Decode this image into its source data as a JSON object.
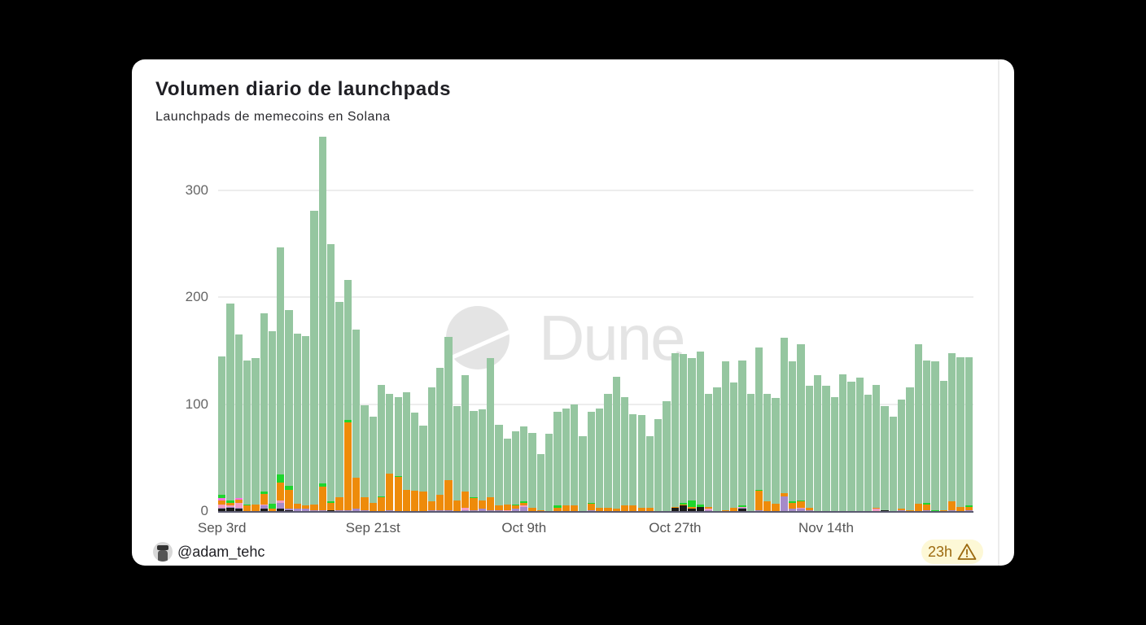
{
  "card": {
    "title": "Volumen diario de launchpads",
    "subtitle": "Launchpads de memecoins en Solana"
  },
  "footer": {
    "username": "@adam_tehc",
    "avatar_icon": "user-avatar",
    "freshness_badge": "23h",
    "warning_icon": "warning-triangle-icon"
  },
  "watermark": {
    "text": "Dune"
  },
  "colors": {
    "main_series": "#95c6a0",
    "orange": "#ee8b0a",
    "green": "#1fd62e",
    "purple": "#a58ac8",
    "pink": "#f39bc2",
    "magenta": "#f76fe0",
    "black": "#1a1a1a",
    "grid": "#ededed",
    "badge_bg": "#fdf8d6",
    "badge_text": "#9c6a10"
  },
  "chart_data": {
    "type": "bar",
    "stacked": true,
    "title": "Volumen diario de launchpads",
    "subtitle": "Launchpads de memecoins en Solana",
    "xlabel": "",
    "ylabel": "",
    "ylim": [
      0,
      350
    ],
    "yticks": [
      0,
      100,
      200,
      300
    ],
    "xtick_labels": [
      "Sep 3rd",
      "Sep 21st",
      "Oct 9th",
      "Oct 27th",
      "Nov 14th"
    ],
    "xtick_indices": [
      0,
      18,
      36,
      54,
      72
    ],
    "grid": true,
    "legend": "none",
    "start_date": "Sep 3rd",
    "totals": [
      145,
      194,
      165,
      141,
      143,
      185,
      168,
      247,
      188,
      166,
      164,
      281,
      350,
      250,
      196,
      216,
      170,
      99,
      88,
      118,
      110,
      107,
      111,
      92,
      80,
      116,
      134,
      163,
      98,
      127,
      94,
      95,
      143,
      81,
      68,
      75,
      79,
      73,
      53,
      72,
      93,
      96,
      100,
      70,
      93,
      96,
      110,
      126,
      107,
      91,
      90,
      70,
      86,
      103,
      148,
      147,
      143,
      149,
      110,
      116,
      140,
      120,
      141,
      110,
      153,
      110,
      106,
      162,
      140,
      156,
      117,
      127,
      117,
      107,
      128,
      121,
      125,
      109,
      118,
      98,
      88,
      104,
      116,
      156,
      141,
      140,
      122,
      148,
      144,
      144
    ],
    "series": [
      {
        "name": "black",
        "color": "#1a1a1a",
        "values": [
          2,
          3,
          2,
          0,
          0,
          2,
          0,
          2,
          1,
          0,
          0,
          0,
          0,
          1,
          0,
          0,
          0,
          0,
          0,
          0,
          0,
          0,
          0,
          0,
          0,
          0,
          0,
          0,
          0,
          0,
          0,
          0,
          0,
          0,
          0,
          0,
          0,
          0,
          0,
          0,
          0,
          0,
          0,
          0,
          0,
          0,
          0,
          0,
          0,
          0,
          0,
          0,
          0,
          0,
          3,
          5,
          2,
          4,
          0,
          0,
          0,
          0,
          2,
          0,
          0,
          0,
          0,
          0,
          0,
          0,
          0,
          0,
          0,
          0,
          0,
          0,
          0,
          0,
          0,
          1,
          0,
          0,
          0,
          0,
          0,
          0,
          0,
          0,
          0,
          0
        ]
      },
      {
        "name": "purple",
        "color": "#a58ac8",
        "values": [
          1,
          1,
          1,
          0,
          0,
          3,
          0,
          6,
          1,
          2,
          2,
          1,
          1,
          0,
          1,
          1,
          2,
          1,
          0,
          0,
          1,
          0,
          0,
          0,
          0,
          1,
          1,
          1,
          0,
          1,
          1,
          2,
          1,
          1,
          0,
          2,
          4,
          0,
          0,
          0,
          0,
          0,
          0,
          0,
          1,
          0,
          0,
          0,
          0,
          0,
          0,
          0,
          0,
          0,
          0,
          0,
          0,
          0,
          1,
          0,
          0,
          0,
          1,
          0,
          1,
          0,
          0,
          14,
          2,
          2,
          1,
          0,
          0,
          0,
          0,
          0,
          0,
          0,
          0,
          0,
          0,
          1,
          0,
          0,
          1,
          0,
          0,
          1,
          0,
          1
        ]
      },
      {
        "name": "pink",
        "color": "#f39bc2",
        "values": [
          3,
          1,
          5,
          0,
          0,
          1,
          0,
          2,
          0,
          0,
          0,
          0,
          0,
          0,
          0,
          0,
          0,
          0,
          0,
          0,
          0,
          0,
          0,
          0,
          0,
          0,
          0,
          0,
          0,
          2,
          0,
          0,
          0,
          0,
          1,
          0,
          1,
          0,
          0,
          0,
          0,
          0,
          0,
          0,
          0,
          0,
          0,
          0,
          0,
          0,
          0,
          0,
          0,
          0,
          0,
          0,
          0,
          0,
          1,
          0,
          0,
          0,
          1,
          0,
          0,
          0,
          0,
          0,
          0,
          1,
          0,
          0,
          0,
          0,
          0,
          0,
          0,
          0,
          2,
          0,
          0,
          0,
          0,
          0,
          0,
          0,
          0,
          0,
          0,
          0
        ]
      },
      {
        "name": "orange",
        "color": "#ee8b0a",
        "values": [
          4,
          3,
          3,
          5,
          6,
          10,
          2,
          17,
          18,
          5,
          3,
          5,
          22,
          7,
          12,
          82,
          29,
          12,
          8,
          13,
          34,
          32,
          20,
          19,
          18,
          8,
          14,
          28,
          10,
          15,
          11,
          8,
          12,
          4,
          5,
          3,
          3,
          3,
          1,
          0,
          3,
          5,
          5,
          0,
          6,
          3,
          3,
          2,
          5,
          5,
          3,
          3,
          0,
          0,
          1,
          1,
          2,
          0,
          2,
          0,
          1,
          3,
          0,
          0,
          18,
          9,
          7,
          3,
          6,
          6,
          2,
          0,
          0,
          0,
          0,
          0,
          0,
          0,
          1,
          0,
          0,
          1,
          1,
          7,
          5,
          0,
          1,
          8,
          4,
          3
        ]
      },
      {
        "name": "magenta",
        "color": "#f76fe0",
        "values": [
          2,
          0,
          1,
          0,
          0,
          0,
          0,
          0,
          0,
          0,
          0,
          0,
          0,
          0,
          0,
          0,
          0,
          0,
          0,
          0,
          0,
          0,
          0,
          0,
          0,
          0,
          0,
          0,
          0,
          0,
          0,
          0,
          0,
          0,
          0,
          0,
          0,
          0,
          0,
          0,
          0,
          0,
          0,
          0,
          0,
          0,
          0,
          0,
          0,
          0,
          0,
          0,
          0,
          0,
          0,
          0,
          0,
          0,
          0,
          0,
          0,
          0,
          0,
          0,
          0,
          0,
          0,
          0,
          0,
          0,
          0,
          0,
          0,
          0,
          0,
          0,
          0,
          0,
          0,
          0,
          0,
          0,
          0,
          0,
          0,
          0,
          0,
          0,
          0,
          0
        ]
      },
      {
        "name": "green",
        "color": "#1fd62e",
        "values": [
          3,
          2,
          0,
          1,
          0,
          2,
          5,
          7,
          4,
          0,
          0,
          0,
          3,
          1,
          0,
          2,
          0,
          0,
          0,
          1,
          0,
          1,
          0,
          0,
          0,
          0,
          0,
          0,
          0,
          0,
          1,
          0,
          0,
          0,
          0,
          1,
          1,
          0,
          0,
          0,
          2,
          0,
          0,
          0,
          1,
          0,
          0,
          0,
          0,
          0,
          0,
          0,
          0,
          0,
          0,
          2,
          6,
          2,
          0,
          0,
          0,
          0,
          1,
          0,
          1,
          0,
          0,
          0,
          1,
          1,
          0,
          0,
          0,
          0,
          0,
          0,
          0,
          0,
          0,
          0,
          0,
          0,
          0,
          0,
          2,
          1,
          0,
          0,
          0,
          1
        ]
      },
      {
        "name": "main",
        "color": "#95c6a0",
        "values": [
          130,
          184,
          153,
          135,
          137,
          167,
          161,
          213,
          164,
          159,
          159,
          275,
          324,
          241,
          183,
          131,
          139,
          86,
          80,
          104,
          75,
          74,
          91,
          73,
          62,
          107,
          119,
          134,
          88,
          109,
          81,
          85,
          130,
          76,
          62,
          69,
          70,
          70,
          52,
          72,
          88,
          91,
          95,
          70,
          85,
          93,
          107,
          124,
          102,
          86,
          87,
          67,
          86,
          103,
          144,
          139,
          133,
          143,
          106,
          116,
          139,
          117,
          136,
          110,
          133,
          101,
          99,
          145,
          131,
          146,
          114,
          127,
          117,
          107,
          128,
          121,
          125,
          109,
          115,
          97,
          88,
          102,
          115,
          149,
          133,
          139,
          121,
          139,
          140,
          139
        ]
      }
    ]
  }
}
